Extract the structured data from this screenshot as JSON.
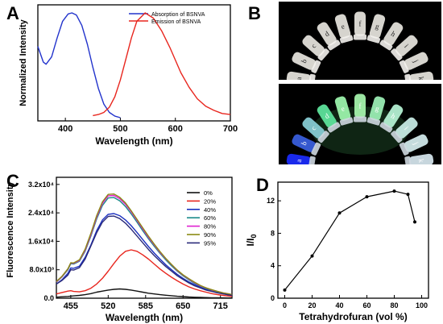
{
  "panels": {
    "a": {
      "letter": "A"
    },
    "b": {
      "letter": "B"
    },
    "c": {
      "letter": "C"
    },
    "d": {
      "letter": "D"
    }
  },
  "photos": {
    "tube_labels": [
      "a",
      "b",
      "c",
      "d",
      "e",
      "f",
      "g",
      "h",
      "i",
      "j",
      "k"
    ],
    "top_tube_color": "#e8e6e0",
    "bottom_fluorescence_colors": [
      "#1b2cff",
      "#3a5fe0",
      "#8ad0d8",
      "#5fe8a0",
      "#9ff8b0",
      "#a8f8b0",
      "#9ef2b8",
      "#b9f6d8",
      "#cbefe8",
      "#d6eef0",
      "#d8e8f0"
    ]
  },
  "chart_data": [
    {
      "panel": "A",
      "type": "line",
      "xlabel": "Wavelength (nm)",
      "ylabel": "Normalized Intensity",
      "xlim": [
        350,
        700
      ],
      "xticks": [
        400,
        500,
        600,
        700
      ],
      "legend_position": "top-right",
      "series": [
        {
          "name": "Absorption of BSNVA",
          "color": "#2233cc",
          "x": [
            350,
            360,
            365,
            375,
            385,
            395,
            405,
            412,
            420,
            430,
            440,
            450,
            460,
            470,
            480,
            490,
            500
          ],
          "y": [
            0.68,
            0.53,
            0.51,
            0.58,
            0.76,
            0.92,
            0.99,
            1.0,
            0.98,
            0.88,
            0.7,
            0.48,
            0.28,
            0.13,
            0.05,
            0.015,
            0.0
          ]
        },
        {
          "name": "Emission of BSNVA",
          "color": "#e8261e",
          "x": [
            450,
            460,
            470,
            480,
            490,
            500,
            510,
            520,
            530,
            545,
            560,
            575,
            590,
            600,
            610,
            625,
            640,
            655,
            670,
            685,
            700
          ],
          "y": [
            0.02,
            0.03,
            0.05,
            0.1,
            0.2,
            0.36,
            0.56,
            0.76,
            0.92,
            1.0,
            0.95,
            0.83,
            0.67,
            0.55,
            0.43,
            0.29,
            0.18,
            0.11,
            0.07,
            0.04,
            0.03
          ]
        }
      ]
    },
    {
      "panel": "C",
      "type": "line",
      "xlabel": "Wavelength (nm)",
      "ylabel": "Fluorescence Intensity",
      "xlim": [
        430,
        735
      ],
      "ylim": [
        0,
        34000
      ],
      "xticks": [
        455,
        520,
        585,
        650,
        715
      ],
      "yticks": [
        {
          "v": 0,
          "label": "0.0"
        },
        {
          "v": 8000,
          "label": "8.0x10³"
        },
        {
          "v": 16000,
          "label": "1.6x10⁴"
        },
        {
          "v": 24000,
          "label": "2.4x10⁴"
        },
        {
          "v": 32000,
          "label": "3.2x10⁴"
        }
      ],
      "legend_position": "right",
      "x": [
        430,
        440,
        450,
        455,
        460,
        470,
        480,
        490,
        500,
        510,
        520,
        530,
        540,
        550,
        560,
        570,
        580,
        590,
        600,
        610,
        620,
        630,
        640,
        650,
        660,
        670,
        680,
        690,
        700,
        710,
        720,
        730,
        735
      ],
      "series": [
        {
          "name": "0%",
          "color": "#111111",
          "y": [
            300,
            400,
            500,
            600,
            650,
            800,
            1000,
            1300,
            1700,
            2000,
            2300,
            2500,
            2600,
            2500,
            2300,
            2000,
            1700,
            1400,
            1200,
            1000,
            850,
            700,
            550,
            450,
            350,
            280,
            220,
            180,
            140,
            110,
            90,
            70,
            60
          ]
        },
        {
          "name": "20%",
          "color": "#e8261e",
          "y": [
            1200,
            1600,
            2000,
            2100,
            1900,
            1800,
            2100,
            2800,
            4000,
            5600,
            7600,
            9800,
            11800,
            13200,
            13600,
            13200,
            12200,
            11000,
            9600,
            8200,
            7000,
            5900,
            4900,
            4000,
            3200,
            2600,
            2100,
            1700,
            1300,
            1000,
            800,
            600,
            500
          ]
        },
        {
          "name": "40%",
          "color": "#1a2fbf",
          "y": [
            4000,
            5200,
            7000,
            8500,
            8400,
            9000,
            11500,
            15000,
            19000,
            22000,
            23600,
            23800,
            23200,
            22000,
            20400,
            18500,
            16500,
            14500,
            12700,
            11000,
            9400,
            8000,
            6700,
            5600,
            4600,
            3800,
            3100,
            2500,
            2000,
            1600,
            1300,
            1000,
            900
          ]
        },
        {
          "name": "60%",
          "color": "#1a8a8a",
          "y": [
            4500,
            6000,
            8000,
            9700,
            9600,
            10400,
            13200,
            17500,
            22300,
            26100,
            28200,
            28300,
            27400,
            25800,
            23700,
            21400,
            19000,
            16700,
            14600,
            12600,
            10800,
            9100,
            7600,
            6300,
            5200,
            4200,
            3400,
            2800,
            2200,
            1800,
            1400,
            1100,
            1000
          ]
        },
        {
          "name": "80%",
          "color": "#e020d0",
          "y": [
            4600,
            6100,
            8200,
            9900,
            9800,
            10600,
            13500,
            17900,
            22800,
            26700,
            28800,
            28900,
            28000,
            26400,
            24300,
            21900,
            19500,
            17100,
            15000,
            12900,
            11100,
            9400,
            7800,
            6500,
            5400,
            4400,
            3500,
            2900,
            2300,
            1900,
            1500,
            1200,
            1000
          ]
        },
        {
          "name": "90%",
          "color": "#8a8a12",
          "y": [
            4700,
            6200,
            8300,
            10000,
            9900,
            10800,
            13800,
            18300,
            23200,
            27100,
            29200,
            29300,
            28400,
            26800,
            24600,
            22200,
            19800,
            17400,
            15200,
            13100,
            11200,
            9500,
            7900,
            6600,
            5500,
            4500,
            3600,
            2900,
            2400,
            1900,
            1500,
            1200,
            1000
          ]
        },
        {
          "name": "95%",
          "color": "#2a2a7a",
          "y": [
            4000,
            5000,
            6500,
            8000,
            7900,
            8600,
            11000,
            14700,
            18400,
            21400,
            23000,
            23100,
            22400,
            21100,
            19400,
            17500,
            15600,
            13700,
            12000,
            10400,
            8900,
            7600,
            6300,
            5300,
            4300,
            3500,
            2900,
            2300,
            1900,
            1500,
            1200,
            900,
            800
          ]
        }
      ]
    },
    {
      "panel": "D",
      "type": "line",
      "xlabel": "Tetrahydrofuran (vol %)",
      "ylabel": "I/I",
      "ylabel_sub": "0",
      "xlim": [
        -5,
        105
      ],
      "ylim": [
        0,
        14.3
      ],
      "xticks": [
        0,
        20,
        40,
        60,
        80,
        100
      ],
      "yticks": [
        0,
        4,
        8,
        12
      ],
      "series": [
        {
          "color": "#000000",
          "x": [
            0,
            20,
            40,
            60,
            80,
            90,
            95
          ],
          "y": [
            1.0,
            5.2,
            10.5,
            12.5,
            13.2,
            12.8,
            9.4
          ]
        }
      ]
    }
  ]
}
